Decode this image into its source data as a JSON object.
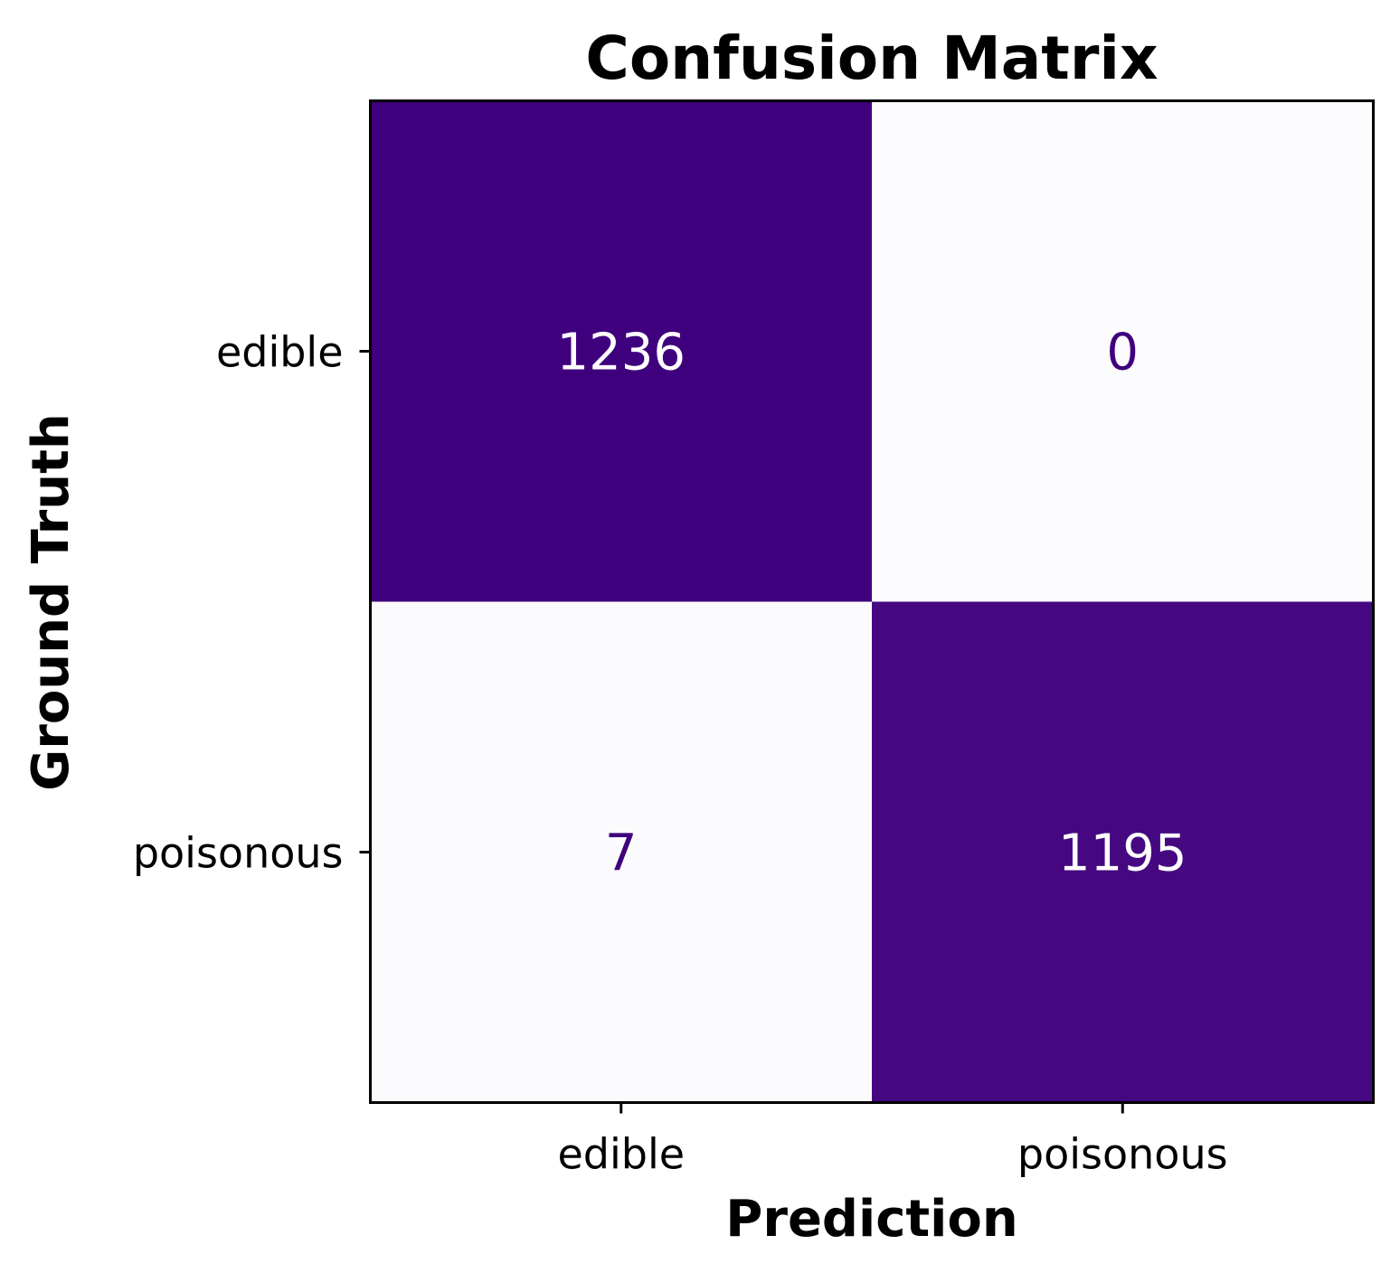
{
  "chart_data": {
    "type": "heatmap",
    "title": "Confusion Matrix",
    "xlabel": "Prediction",
    "ylabel": "Ground Truth",
    "x_categories": [
      "edible",
      "poisonous"
    ],
    "y_categories": [
      "edible",
      "poisonous"
    ],
    "values": [
      [
        1236,
        0
      ],
      [
        7,
        1195
      ]
    ],
    "colormap": "Purples",
    "grid": false,
    "legend": "none",
    "colors": {
      "high": "#3f007d",
      "low": "#fcfbfd",
      "text_on_dark": "#ffffff",
      "text_on_light": "#3f007d"
    }
  }
}
